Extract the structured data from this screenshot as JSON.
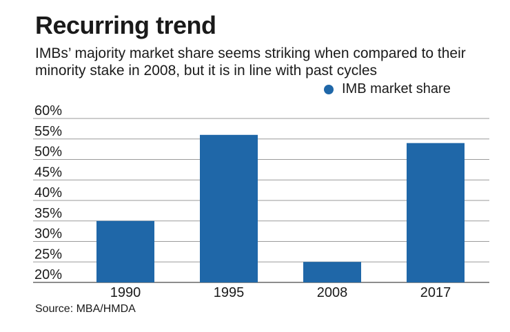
{
  "header": {
    "title": "Recurring trend",
    "subtitle": "IMBs’ majority market share seems striking when compared to their minority stake in 2008, but it is in line with past cycles"
  },
  "legend": {
    "label": "IMB market share",
    "color": "#1f67a8"
  },
  "footer": {
    "source": "Source: MBA/HMDA"
  },
  "chart_data": {
    "type": "bar",
    "title": "Recurring trend",
    "categories": [
      "1990",
      "1995",
      "2008",
      "2017"
    ],
    "series": [
      {
        "name": "IMB market share",
        "values": [
          35,
          56,
          25,
          54
        ]
      }
    ],
    "ylim": [
      20,
      60
    ],
    "yticks": [
      20,
      25,
      30,
      35,
      40,
      45,
      50,
      55,
      60
    ],
    "ytick_labels": [
      "20%",
      "25%",
      "30%",
      "35%",
      "40%",
      "45%",
      "50%",
      "55%",
      "60%"
    ],
    "grid": true,
    "legend_position": "top-right",
    "xlabel": "",
    "ylabel": ""
  }
}
